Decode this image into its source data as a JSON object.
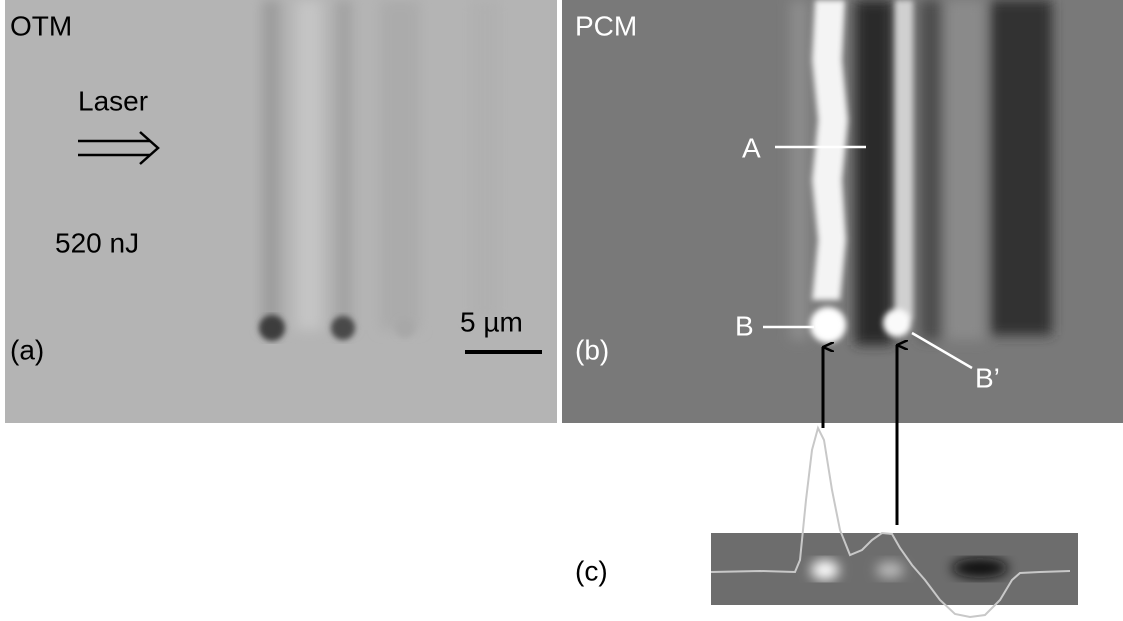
{
  "panel_a": {
    "mode": "OTM",
    "beam": "Laser",
    "energy": "520 nJ",
    "scale": "5 µm",
    "tag": "(a)"
  },
  "panel_b": {
    "mode": "PCM",
    "labels": [
      "A",
      "B",
      "B’"
    ],
    "tag": "(b)"
  },
  "panel_c": {
    "tag": "(c)"
  }
}
